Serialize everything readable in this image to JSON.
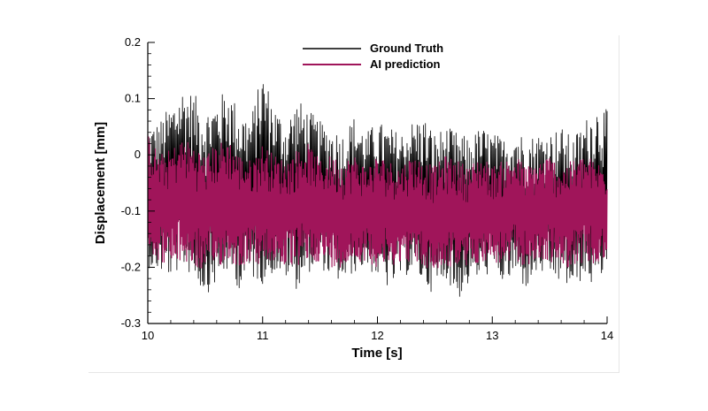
{
  "chart_data": {
    "type": "line",
    "xlabel": "Time [s]",
    "ylabel": "Displacement [mm]",
    "xlim": [
      10,
      14
    ],
    "ylim": [
      -0.3,
      0.2
    ],
    "x_ticks": [
      "10",
      "11",
      "12",
      "13",
      "14"
    ],
    "y_ticks": [
      "-0.3",
      "-0.2",
      "-0.1",
      "0",
      "0.1",
      "0.2"
    ],
    "grid": false,
    "legend_position": "top-center",
    "series": [
      {
        "name": "Ground Truth",
        "color": "#000000",
        "x": [
          10.0,
          10.1,
          10.2,
          10.3,
          10.4,
          10.5,
          10.6,
          10.7,
          10.8,
          10.9,
          11.0,
          11.1,
          11.2,
          11.3,
          11.4,
          11.5,
          11.6,
          11.7,
          11.8,
          11.9,
          12.0,
          12.1,
          12.2,
          12.3,
          12.4,
          12.5,
          12.6,
          12.7,
          12.8,
          12.9,
          13.0,
          13.1,
          13.2,
          13.3,
          13.4,
          13.5,
          13.6,
          13.7,
          13.8,
          13.9,
          14.0
        ],
        "upper": [
          0.05,
          0.06,
          0.09,
          0.12,
          0.11,
          0.08,
          0.1,
          0.12,
          0.08,
          0.07,
          0.15,
          0.09,
          0.06,
          0.1,
          0.08,
          0.06,
          0.05,
          0.04,
          0.07,
          0.04,
          0.06,
          0.05,
          0.04,
          0.06,
          0.07,
          0.04,
          0.05,
          0.04,
          0.03,
          0.05,
          0.04,
          0.03,
          0.05,
          0.03,
          0.04,
          0.04,
          0.05,
          0.03,
          0.06,
          0.09,
          0.08
        ],
        "lower": [
          -0.2,
          -0.21,
          -0.22,
          -0.2,
          -0.22,
          -0.25,
          -0.23,
          -0.21,
          -0.24,
          -0.22,
          -0.23,
          -0.21,
          -0.22,
          -0.24,
          -0.21,
          -0.2,
          -0.22,
          -0.23,
          -0.21,
          -0.2,
          -0.22,
          -0.24,
          -0.22,
          -0.21,
          -0.23,
          -0.25,
          -0.22,
          -0.26,
          -0.23,
          -0.22,
          -0.21,
          -0.23,
          -0.22,
          -0.24,
          -0.21,
          -0.22,
          -0.23,
          -0.24,
          -0.22,
          -0.24,
          -0.2
        ]
      },
      {
        "name": "AI prediction",
        "color": "#a0155a",
        "x": [
          10.0,
          10.1,
          10.2,
          10.3,
          10.4,
          10.5,
          10.6,
          10.7,
          10.8,
          10.9,
          11.0,
          11.1,
          11.2,
          11.3,
          11.4,
          11.5,
          11.6,
          11.7,
          11.8,
          11.9,
          12.0,
          12.1,
          12.2,
          12.3,
          12.4,
          12.5,
          12.6,
          12.7,
          12.8,
          12.9,
          13.0,
          13.1,
          13.2,
          13.3,
          13.4,
          13.5,
          13.6,
          13.7,
          13.8,
          13.9,
          14.0
        ],
        "upper": [
          0.04,
          0.0,
          0.01,
          0.03,
          0.02,
          0.0,
          0.02,
          0.03,
          0.0,
          -0.01,
          0.02,
          0.0,
          -0.01,
          0.01,
          0.02,
          -0.01,
          0.0,
          -0.01,
          0.0,
          -0.02,
          0.0,
          -0.01,
          -0.02,
          0.0,
          -0.01,
          -0.02,
          0.0,
          -0.01,
          -0.02,
          0.0,
          -0.02,
          -0.01,
          0.0,
          -0.02,
          -0.01,
          0.0,
          -0.02,
          -0.01,
          0.0,
          -0.01,
          -0.02
        ],
        "lower": [
          -0.17,
          -0.19,
          -0.2,
          -0.19,
          -0.2,
          -0.21,
          -0.2,
          -0.19,
          -0.2,
          -0.19,
          -0.2,
          -0.19,
          -0.2,
          -0.2,
          -0.19,
          -0.19,
          -0.2,
          -0.2,
          -0.19,
          -0.19,
          -0.2,
          -0.2,
          -0.19,
          -0.19,
          -0.2,
          -0.21,
          -0.2,
          -0.2,
          -0.2,
          -0.19,
          -0.19,
          -0.2,
          -0.19,
          -0.2,
          -0.19,
          -0.19,
          -0.2,
          -0.2,
          -0.19,
          -0.2,
          -0.19
        ]
      }
    ]
  }
}
